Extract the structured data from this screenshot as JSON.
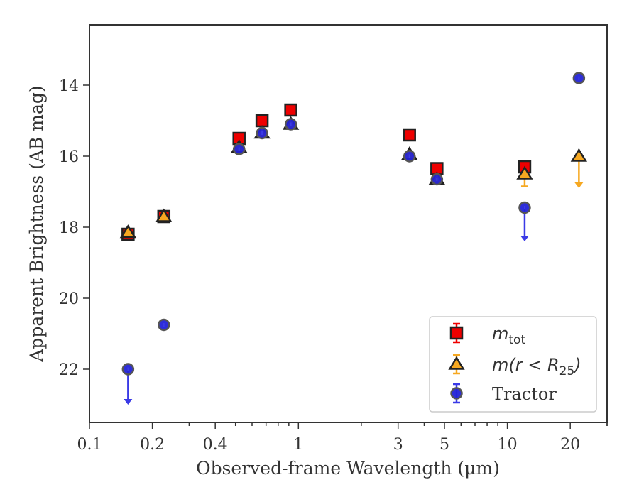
{
  "chart_data": {
    "type": "scatter",
    "title": "",
    "xlabel": "Observed-frame Wavelength (μm)",
    "ylabel": "Apparent Brightness (AB mag)",
    "x_scale": "log",
    "xlim": [
      0.1,
      30
    ],
    "ylim": [
      23.5,
      12.3
    ],
    "y_inverted": true,
    "grid": false,
    "legend_position": "lower-right",
    "x_ticks": [
      {
        "value": 0.1,
        "label": "0.1"
      },
      {
        "value": 0.2,
        "label": "0.2"
      },
      {
        "value": 0.4,
        "label": "0.4"
      },
      {
        "value": 1,
        "label": "1"
      },
      {
        "value": 3,
        "label": "3"
      },
      {
        "value": 5,
        "label": "5"
      },
      {
        "value": 10,
        "label": "10"
      },
      {
        "value": 20,
        "label": "20"
      }
    ],
    "y_ticks": [
      {
        "value": 14,
        "label": "14"
      },
      {
        "value": 16,
        "label": "16"
      },
      {
        "value": 18,
        "label": "18"
      },
      {
        "value": 20,
        "label": "20"
      },
      {
        "value": 22,
        "label": "22"
      }
    ],
    "series": [
      {
        "name": "m_tot",
        "legend_main": "m",
        "legend_sub": "tot",
        "marker": "square",
        "face_color": "#ee0000",
        "edge_color": "#222222",
        "err_color": "#ee0000",
        "points": [
          {
            "x": 0.153,
            "y": 18.2
          },
          {
            "x": 0.227,
            "y": 17.7
          },
          {
            "x": 0.52,
            "y": 15.5
          },
          {
            "x": 0.67,
            "y": 15.0
          },
          {
            "x": 0.92,
            "y": 14.7
          },
          {
            "x": 3.4,
            "y": 15.4
          },
          {
            "x": 4.6,
            "y": 16.35
          },
          {
            "x": 12.1,
            "y": 16.3
          }
        ]
      },
      {
        "name": "m(r < R25)",
        "legend_main": "m(r < R",
        "legend_sub": "25",
        "legend_close": ")",
        "marker": "triangle",
        "face_color": "#f6a821",
        "edge_color": "#222222",
        "err_color": "#f6a821",
        "points": [
          {
            "x": 0.153,
            "y": 18.15
          },
          {
            "x": 0.227,
            "y": 17.7
          },
          {
            "x": 0.52,
            "y": 15.75
          },
          {
            "x": 0.67,
            "y": 15.35
          },
          {
            "x": 0.92,
            "y": 15.1
          },
          {
            "x": 3.4,
            "y": 15.95
          },
          {
            "x": 4.6,
            "y": 16.65
          },
          {
            "x": 12.1,
            "y": 16.5,
            "err_low": 16.85
          },
          {
            "x": 22.0,
            "y": 16.0,
            "upper_limit_to": 16.9
          }
        ]
      },
      {
        "name": "Tractor",
        "legend_main": "Tractor",
        "marker": "circle",
        "face_color": "#2323d6",
        "edge_color": "#555555",
        "err_color": "#3a3ae6",
        "points": [
          {
            "x": 0.153,
            "y": 22.0,
            "upper_limit_to": 23.0
          },
          {
            "x": 0.227,
            "y": 20.75
          },
          {
            "x": 0.52,
            "y": 15.8
          },
          {
            "x": 0.67,
            "y": 15.35
          },
          {
            "x": 0.92,
            "y": 15.1
          },
          {
            "x": 3.4,
            "y": 16.0
          },
          {
            "x": 4.6,
            "y": 16.65
          },
          {
            "x": 12.1,
            "y": 17.45,
            "upper_limit_to": 18.4
          },
          {
            "x": 22.0,
            "y": 13.8
          }
        ]
      }
    ]
  }
}
